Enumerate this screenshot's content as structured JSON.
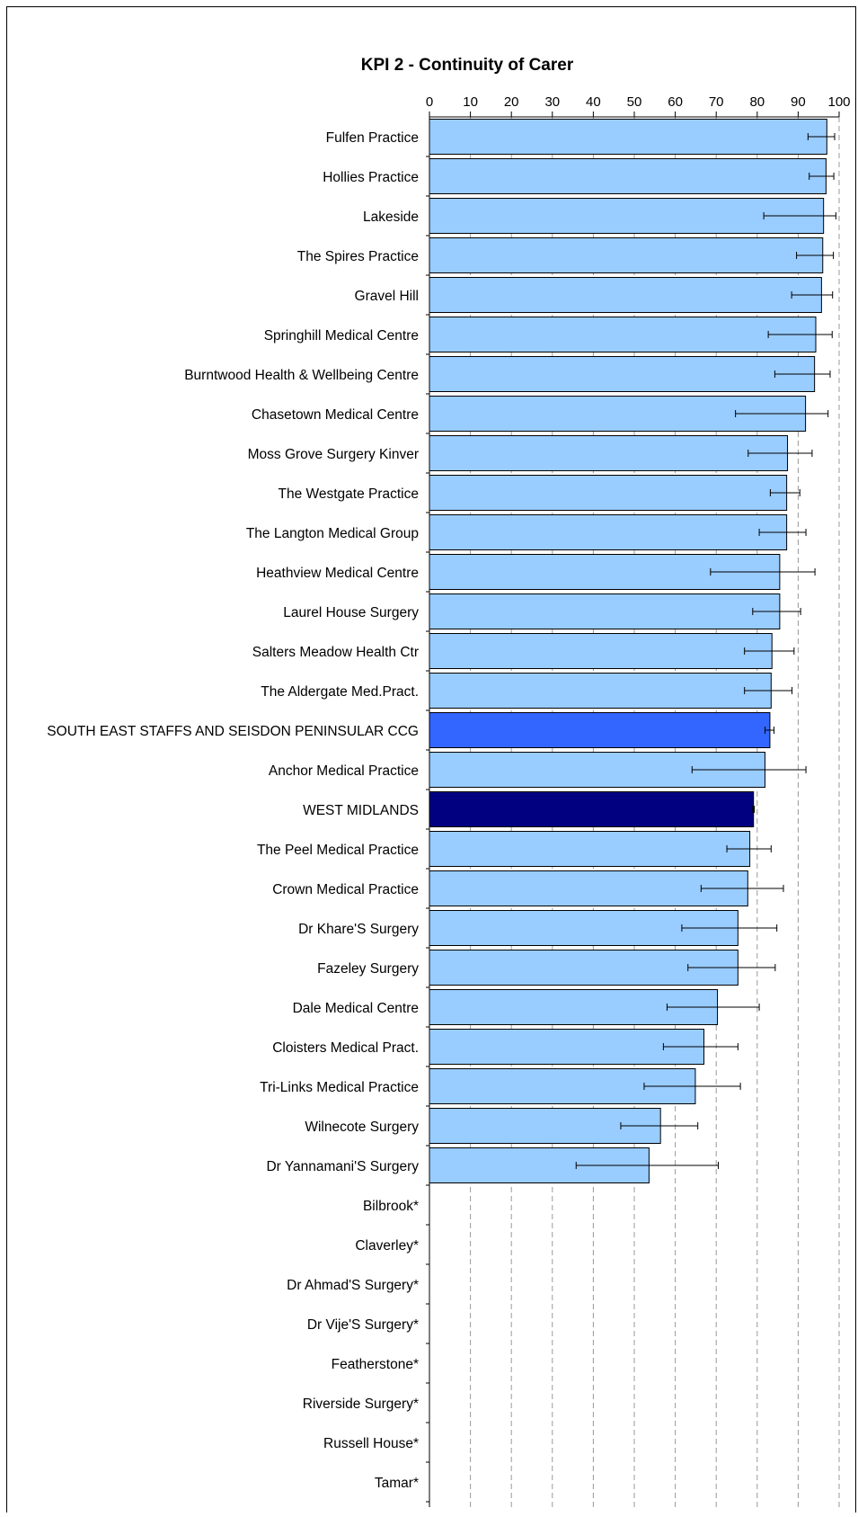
{
  "chart_data": {
    "type": "bar",
    "orientation": "horizontal",
    "title": "KPI 2 - Continuity of Carer",
    "xlim": [
      0,
      100
    ],
    "x_ticks": [
      0,
      10,
      20,
      30,
      40,
      50,
      60,
      70,
      80,
      90,
      100
    ],
    "x_axis_position": "top",
    "grid": "vertical dashed",
    "categories": [
      "Fulfen Practice",
      "Hollies Practice",
      "Lakeside",
      "The Spires Practice",
      "Gravel Hill",
      "Springhill Medical Centre",
      "Burntwood Health & Wellbeing Centre",
      "Chasetown Medical Centre",
      "Moss Grove Surgery Kinver",
      "The Westgate Practice",
      "The Langton Medical Group",
      "Heathview Medical Centre",
      "Laurel House Surgery",
      "Salters Meadow Health Ctr",
      "The Aldergate Med.Pract.",
      "SOUTH EAST STAFFS AND SEISDON PENINSULAR CCG",
      "Anchor Medical Practice",
      "WEST MIDLANDS",
      "The Peel Medical Practice",
      "Crown Medical Practice",
      "Dr Khare'S Surgery",
      "Fazeley Surgery",
      "Dale Medical Centre",
      "Cloisters Medical Pract.",
      "Tri-Links Medical Practice",
      "Wilnecote Surgery",
      "Dr Yannamani'S Surgery",
      "Bilbrook*",
      "Claverley*",
      "Dr Ahmad'S Surgery*",
      "Dr Vije'S Surgery*",
      "Featherstone*",
      "Riverside Surgery*",
      "Russell House*",
      "Tamar*"
    ],
    "values": [
      97,
      96.8,
      96.2,
      96,
      95.7,
      94.3,
      94,
      91.8,
      87.4,
      87.2,
      87.2,
      85.5,
      85.5,
      83.6,
      83.4,
      83.1,
      81.9,
      79.1,
      78.2,
      77.7,
      75.3,
      75.3,
      70.3,
      67,
      64.9,
      56.4,
      53.6,
      null,
      null,
      null,
      null,
      null,
      null,
      null,
      null
    ],
    "error_low": [
      92.4,
      92.7,
      81.6,
      89.6,
      88.4,
      82.7,
      84.3,
      74.7,
      77.8,
      83.2,
      80.5,
      68.6,
      78.9,
      76.9,
      76.9,
      81.9,
      64.1,
      78.9,
      72.6,
      66.3,
      61.6,
      63.1,
      58,
      57.1,
      52.4,
      46.7,
      35.8,
      null,
      null,
      null,
      null,
      null,
      null,
      null,
      null
    ],
    "error_high": [
      98.9,
      98.7,
      99.2,
      98.6,
      98.4,
      98.3,
      97.8,
      97.3,
      93.4,
      90.4,
      91.9,
      94.1,
      90.6,
      89,
      88.5,
      84.1,
      91.9,
      79.3,
      83.4,
      86.4,
      84.8,
      84.4,
      80.5,
      75.3,
      75.9,
      65.5,
      70.5,
      null,
      null,
      null,
      null,
      null,
      null,
      null,
      null
    ],
    "highlight": {
      "SOUTH EAST STAFFS AND SEISDON PENINSULAR CCG": "#3366ff",
      "WEST MIDLANDS": "#000080"
    },
    "colors": {
      "bar": "#99ccff",
      "bar_border": "#000000",
      "grid": "#999999"
    }
  }
}
